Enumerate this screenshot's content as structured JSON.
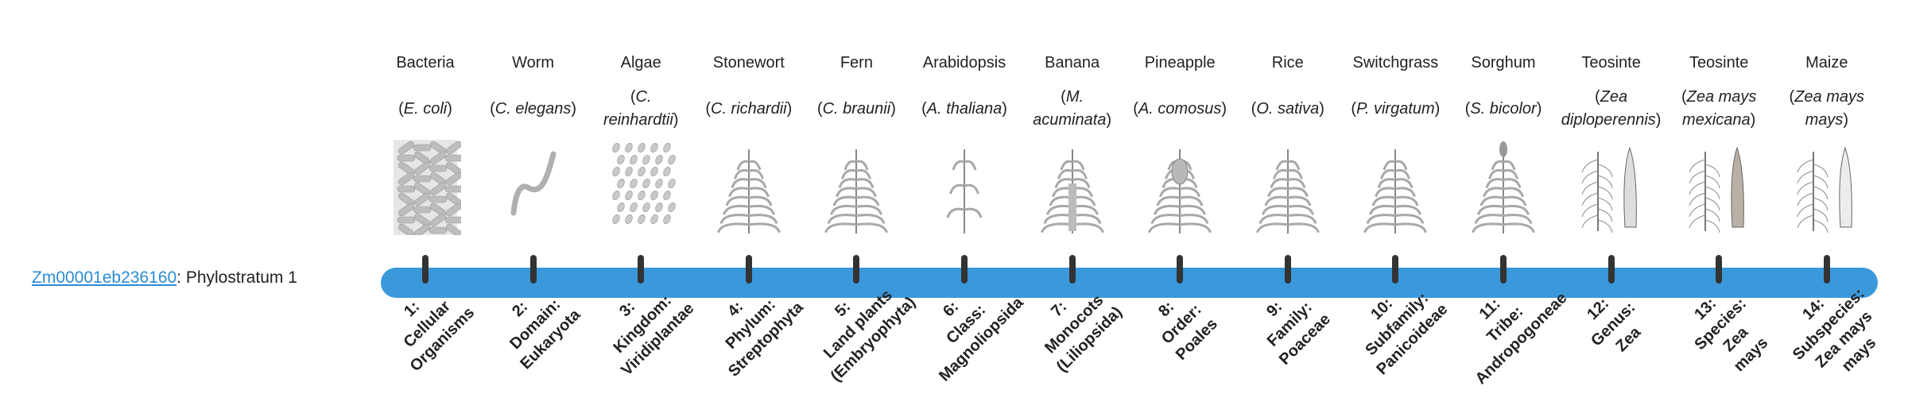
{
  "gene": {
    "id": "Zm00001eb236160",
    "suffix": ": Phylostratum 1"
  },
  "colors": {
    "bar": "#3a98db",
    "tick": "#333333",
    "link": "#2a8bd6"
  },
  "organisms": [
    {
      "common": "Bacteria",
      "sci": "E. coli",
      "icon": "bacteria-icon",
      "stratum": "1:\nCellular\nOrganisms"
    },
    {
      "common": "Worm",
      "sci": "C. elegans",
      "icon": "worm-icon",
      "stratum": "2:\nDomain:\nEukaryota"
    },
    {
      "common": "Algae",
      "sci": "C. reinhardtii",
      "icon": "algae-icon",
      "stratum": "3:\nKingdom:\nViridiplantae"
    },
    {
      "common": "Stonewort",
      "sci": "C. richardii",
      "icon": "stonewort-icon",
      "stratum": "4:\nPhylum:\nStreptophyta"
    },
    {
      "common": "Fern",
      "sci": "C. braunii",
      "icon": "fern-icon",
      "stratum": "5:\nLand plants\n(Embryophyta)"
    },
    {
      "common": "Arabidopsis",
      "sci": "A. thaliana",
      "icon": "arabidopsis-icon",
      "stratum": "6:\nClass:\nMagnoliopsida"
    },
    {
      "common": "Banana",
      "sci": "M. acuminata",
      "icon": "banana-plant-icon",
      "stratum": "7:\nMonocots\n(Liliopsida)"
    },
    {
      "common": "Pineapple",
      "sci": "A. comosus",
      "icon": "pineapple-icon",
      "stratum": "8:\nOrder:\nPoales"
    },
    {
      "common": "Rice",
      "sci": "O. sativa",
      "icon": "rice-icon",
      "stratum": "9:\nFamily:\nPoaceae"
    },
    {
      "common": "Switchgrass",
      "sci": "P. virgatum",
      "icon": "switchgrass-icon",
      "stratum": "10:\nSubfamily:\nPanicoideae"
    },
    {
      "common": "Sorghum",
      "sci": "S. bicolor",
      "icon": "sorghum-icon",
      "stratum": "11:\nTribe:\nAndropogoneae"
    },
    {
      "common": "Teosinte",
      "sci": "Zea diploperennis",
      "icon": "teosinte-icon",
      "stratum": "12:\nGenus:\nZea"
    },
    {
      "common": "Teosinte",
      "sci": "Zea mays mexicana",
      "icon": "teosinte-mexicana-icon",
      "stratum": "13:\nSpecies:\nZea\nmays"
    },
    {
      "common": "Maize",
      "sci": "Zea mays mays",
      "icon": "maize-icon",
      "stratum": "14:\nSubspecies:\nZea mays\nmays"
    }
  ]
}
